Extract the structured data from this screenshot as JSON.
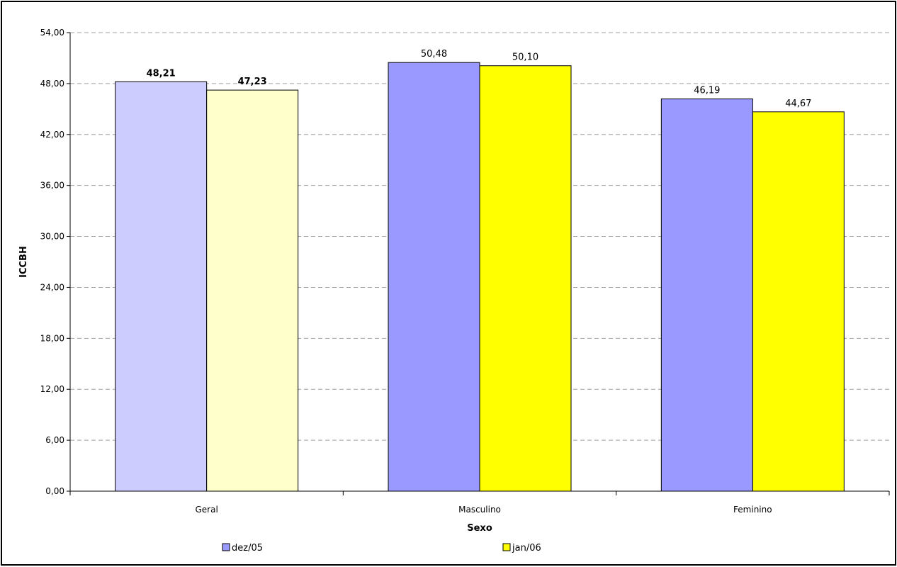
{
  "chart_data": {
    "type": "bar",
    "title": "",
    "xlabel": "Sexo",
    "ylabel": "ICCBH",
    "categories": [
      "Geral",
      "Masculino",
      "Feminino"
    ],
    "series": [
      {
        "name": "dez/05",
        "values": [
          48.21,
          50.48,
          46.19
        ],
        "value_labels": [
          "48,21",
          "50,48",
          "46,19"
        ],
        "colors": [
          "#CCCCFF",
          "#9999FF",
          "#9999FF"
        ]
      },
      {
        "name": "jan/06",
        "values": [
          47.23,
          50.1,
          44.67
        ],
        "value_labels": [
          "47,23",
          "50,10",
          "44,67"
        ],
        "colors": [
          "#FFFFCC",
          "#FFFF00",
          "#FFFF00"
        ]
      }
    ],
    "bold_category_labels": [
      "Geral"
    ],
    "ylim": [
      0,
      54
    ],
    "yticks": [
      0,
      6,
      12,
      18,
      24,
      30,
      36,
      42,
      48,
      54
    ],
    "ytick_labels": [
      "0,00",
      "6,00",
      "12,00",
      "18,00",
      "24,00",
      "30,00",
      "36,00",
      "42,00",
      "48,00",
      "54,00"
    ],
    "grid": true,
    "legend_position": "bottom",
    "legend_colors": [
      "#9999FF",
      "#FFFF00"
    ]
  }
}
